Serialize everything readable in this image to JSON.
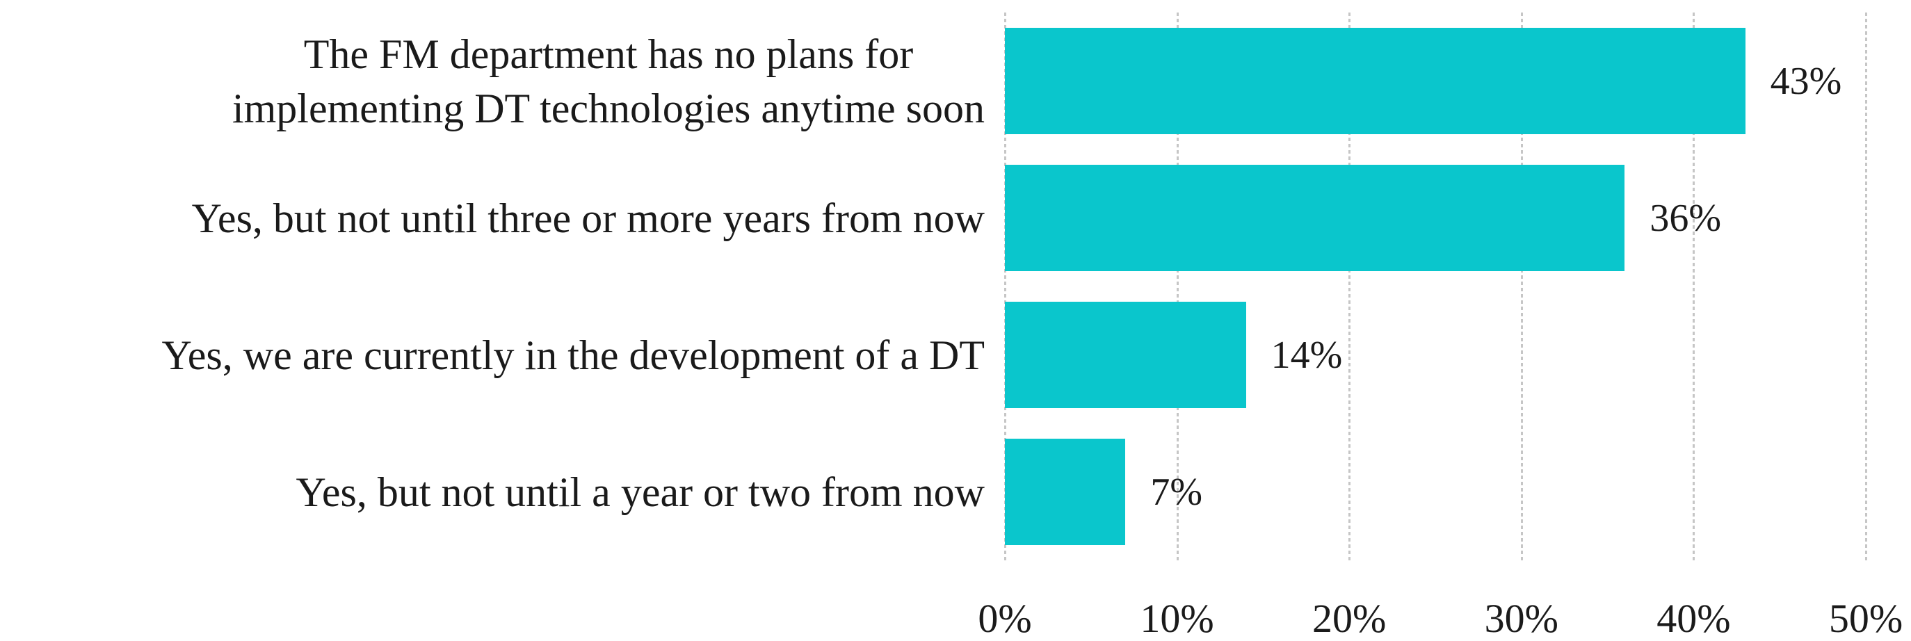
{
  "chart_data": {
    "type": "bar",
    "orientation": "horizontal",
    "title": "",
    "categories": [
      "The FM department has no plans for\nimplementing DT technologies anytime soon",
      "Yes, but not until three or more years from now",
      "Yes, we are currently in the development of a DT",
      "Yes, but not until a year or two from now"
    ],
    "values": [
      43,
      36,
      14,
      7
    ],
    "value_labels": [
      "43%",
      "36%",
      "14%",
      "7%"
    ],
    "x_tick_labels": [
      "0%",
      "10%",
      "20%",
      "30%",
      "40%",
      "50%"
    ],
    "x_tick_values": [
      0,
      10,
      20,
      30,
      40,
      50
    ],
    "xlim": [
      0,
      50
    ],
    "xlabel": "",
    "ylabel": "",
    "legend": "none",
    "grid": "vertical-dotted",
    "bar_color": "#0AC6CC",
    "gridline_color": "#C6C6C6",
    "text_color": "#1A1A1A",
    "background_color": "#FFFFFF"
  }
}
